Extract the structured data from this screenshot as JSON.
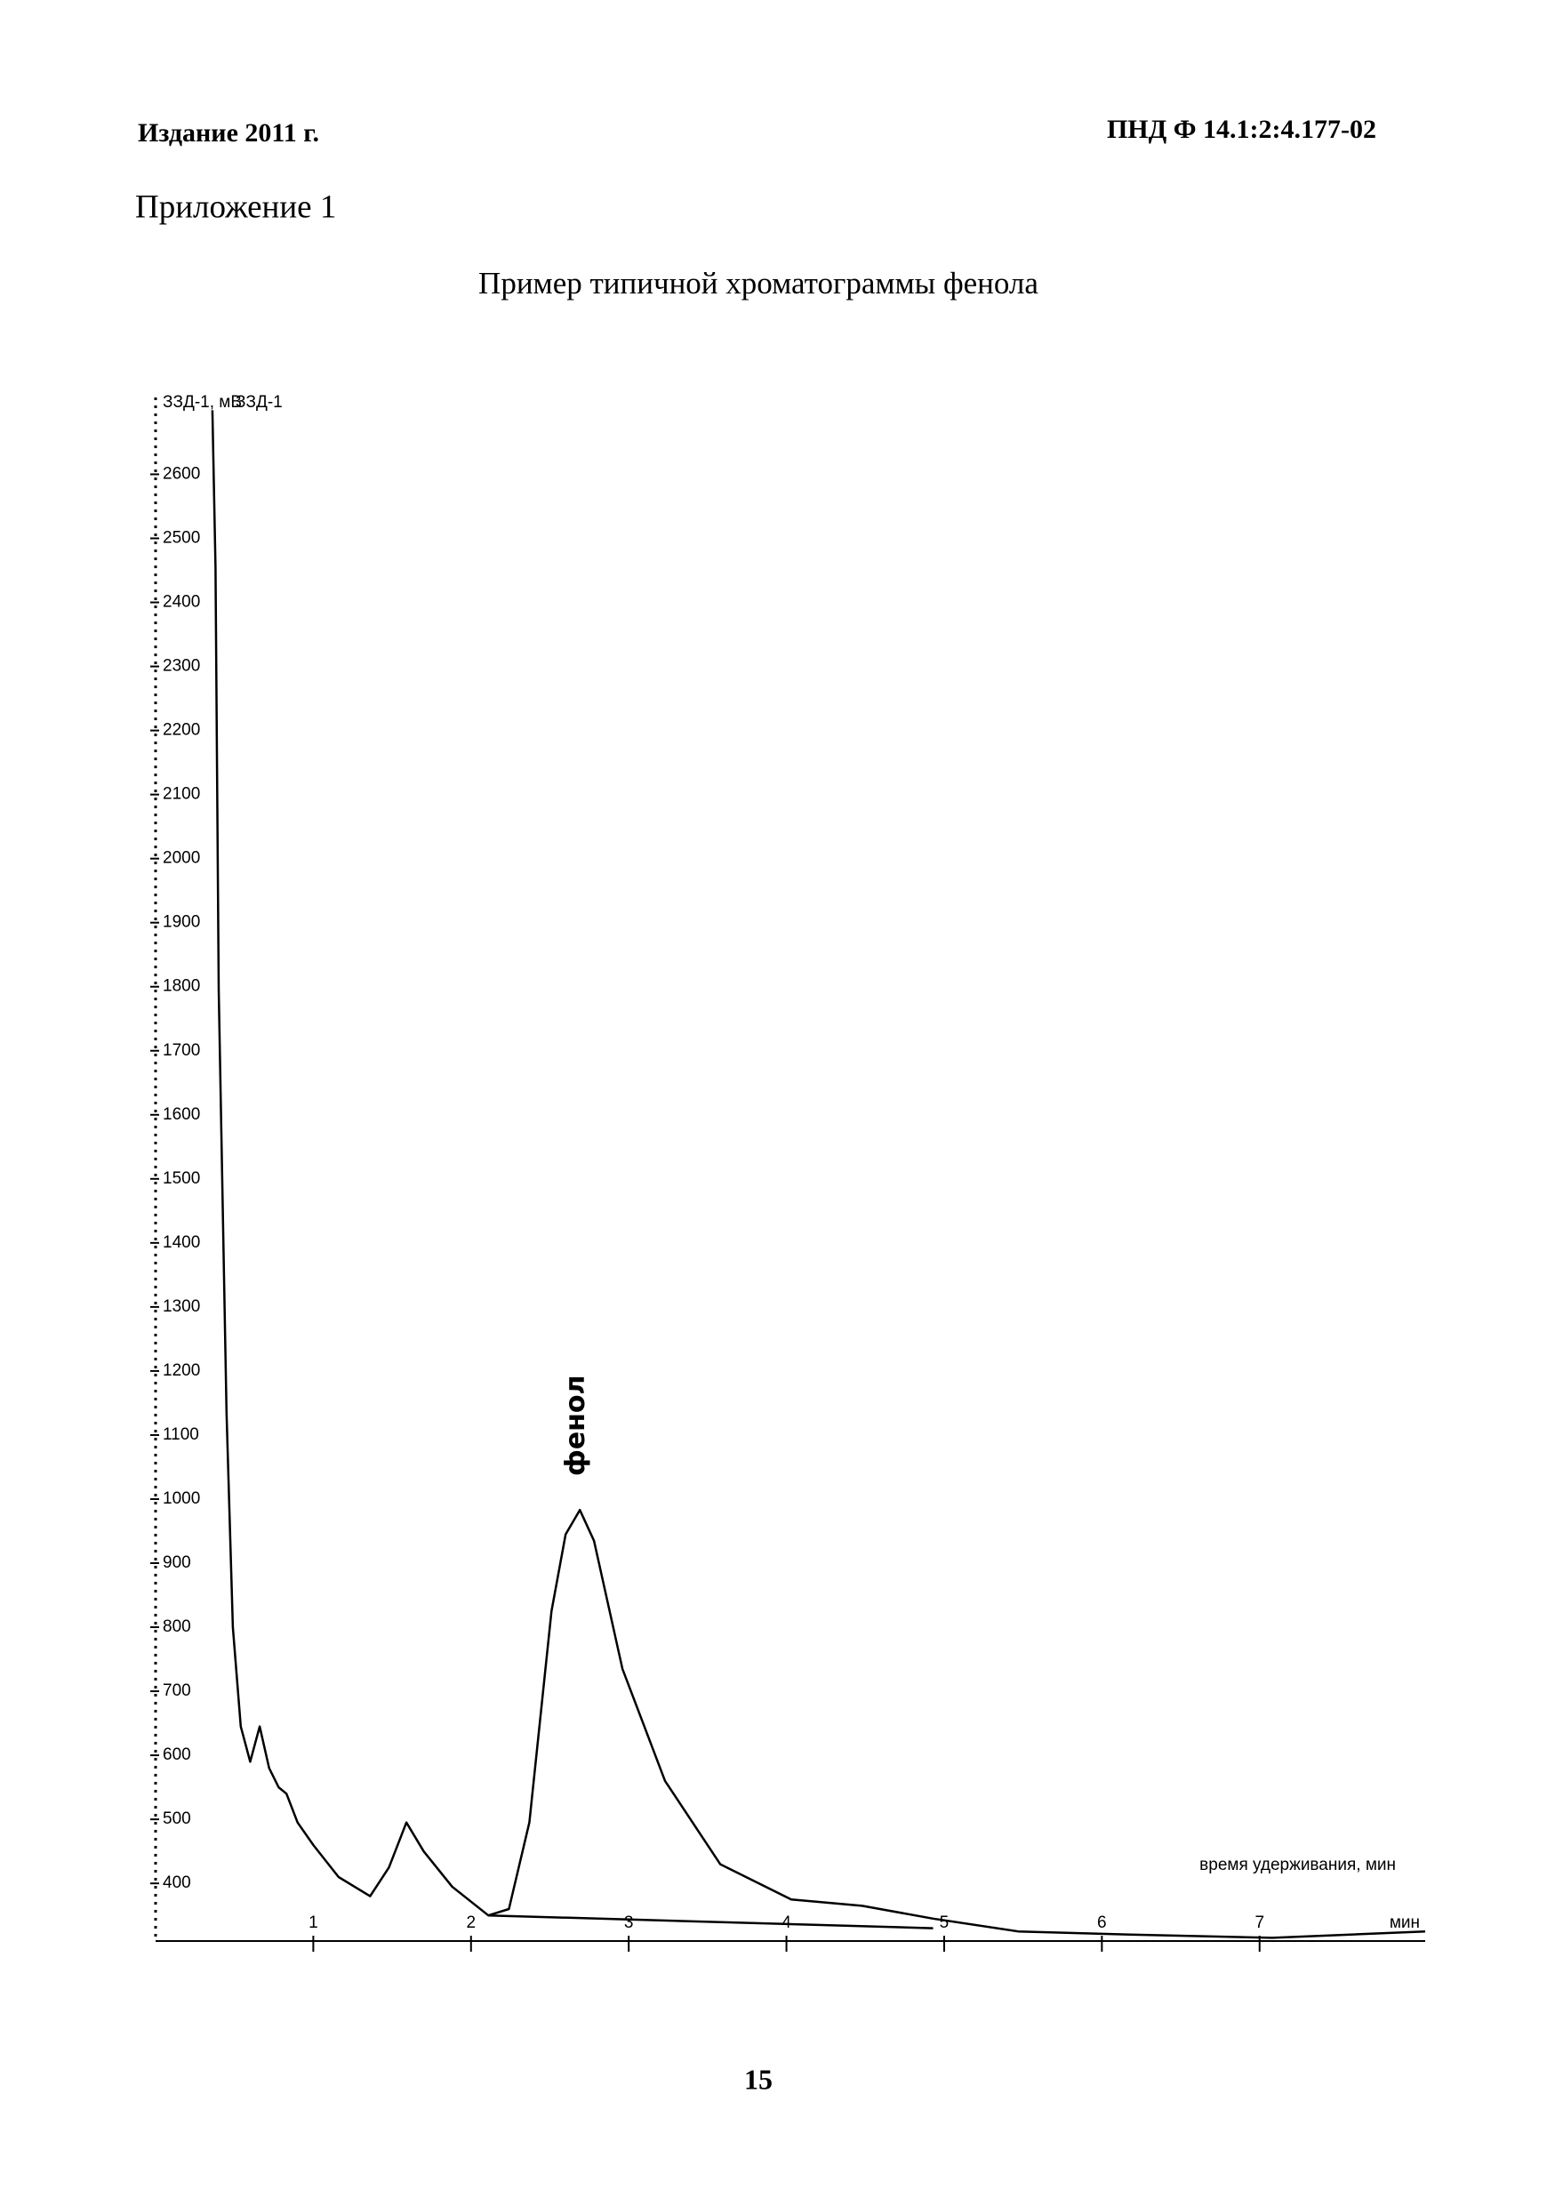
{
  "header": {
    "left": "Издание 2011 г.",
    "right": "ПНД Ф 14.1:2:4.177-02"
  },
  "appendix": "Приложение 1",
  "chart_data": {
    "type": "line",
    "title": "Пример типичной хроматограммы фенола",
    "y_label": "ЗЗД-1, мВ",
    "series_label": "ЗЗД-1",
    "x_label": "время удерживания, мин",
    "x_unit": "мин",
    "annotation": {
      "text": "фенол",
      "x": 2.67,
      "y": 983
    },
    "xlim": [
      0,
      8.05
    ],
    "xticks": [
      1,
      2,
      3,
      4,
      5,
      6,
      7
    ],
    "ylim": [
      310,
      2720
    ],
    "yticks": [
      400,
      500,
      600,
      700,
      800,
      900,
      1000,
      1100,
      1200,
      1300,
      1400,
      1500,
      1600,
      1700,
      1800,
      1900,
      2000,
      2100,
      2200,
      2300,
      2400,
      2500,
      2600
    ],
    "grid": false,
    "series": [
      {
        "color": "#000000",
        "x": [
          0.36,
          0.38,
          0.4,
          0.45,
          0.49,
          0.54,
          0.6,
          0.66,
          0.72,
          0.78,
          0.83,
          0.9,
          1.0,
          1.16,
          1.36,
          1.48,
          1.59,
          1.7,
          1.88,
          2.11,
          2.24,
          2.37,
          2.51,
          2.6,
          2.69,
          2.78,
          2.96,
          3.23,
          3.58,
          4.03,
          4.48,
          4.93,
          5.47,
          6.18,
          7.08,
          8.05
        ],
        "values": [
          2700,
          2455,
          1795,
          1135,
          800,
          645,
          590,
          645,
          580,
          550,
          540,
          495,
          460,
          410,
          380,
          425,
          495,
          450,
          395,
          350,
          360,
          495,
          825,
          945,
          983,
          935,
          735,
          560,
          430,
          375,
          365,
          345,
          325,
          320,
          315,
          325
        ]
      },
      {
        "color": "#000000",
        "x": [
          2.11,
          4.93
        ],
        "values": [
          350,
          330
        ]
      }
    ]
  },
  "page_number": "15"
}
